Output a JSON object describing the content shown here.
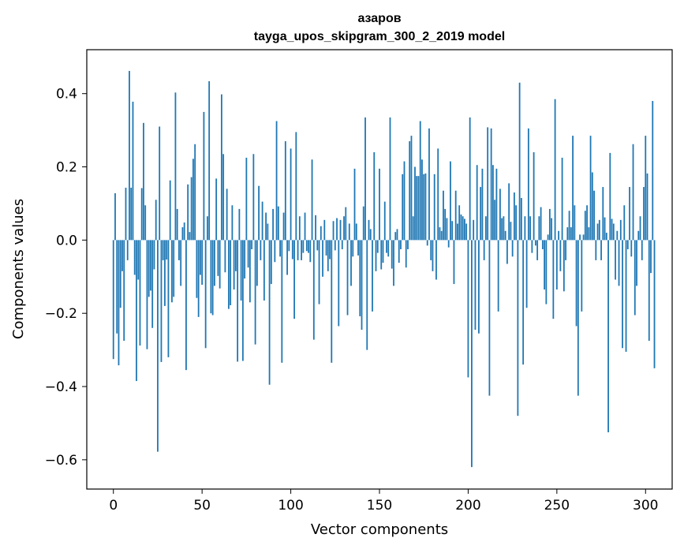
{
  "chart_data": {
    "type": "bar",
    "title_line1": "азаров",
    "title_line2": "tayga_upos_skipgram_300_2_2019 model",
    "xlabel": "Vector components",
    "ylabel": "Components values",
    "xlim": [
      -15,
      315
    ],
    "ylim": [
      -0.68,
      0.52
    ],
    "xticks": [
      0,
      50,
      100,
      150,
      200,
      250,
      300
    ],
    "xtick_labels": [
      "0",
      "50",
      "100",
      "150",
      "200",
      "250",
      "300"
    ],
    "yticks": [
      -0.6,
      -0.4,
      -0.2,
      0.0,
      0.2,
      0.4
    ],
    "ytick_labels": [
      "−0.6",
      "−0.4",
      "−0.2",
      "0.0",
      "0.2",
      "0.4"
    ],
    "bar_color": "#1f77b4",
    "grid": false,
    "legend": "none",
    "values": [
      -0.325,
      0.128,
      -0.255,
      -0.342,
      -0.185,
      -0.085,
      -0.275,
      0.143,
      -0.055,
      0.462,
      0.143,
      0.378,
      -0.095,
      -0.385,
      -0.108,
      -0.288,
      0.142,
      0.32,
      0.095,
      -0.298,
      -0.155,
      -0.138,
      -0.24,
      -0.08,
      0.11,
      -0.578,
      0.31,
      -0.333,
      -0.055,
      -0.18,
      -0.053,
      -0.32,
      0.163,
      -0.17,
      -0.155,
      0.403,
      0.085,
      -0.055,
      -0.125,
      0.035,
      0.048,
      -0.355,
      0.152,
      0.022,
      0.172,
      0.222,
      0.262,
      -0.158,
      -0.21,
      -0.095,
      -0.122,
      0.35,
      -0.295,
      0.065,
      0.434,
      -0.2,
      -0.205,
      -0.125,
      0.168,
      -0.098,
      -0.132,
      0.398,
      0.235,
      -0.088,
      0.14,
      -0.188,
      -0.178,
      0.095,
      -0.135,
      -0.085,
      -0.332,
      0.085,
      -0.165,
      -0.33,
      -0.105,
      0.225,
      -0.075,
      -0.17,
      -0.025,
      0.235,
      -0.285,
      -0.125,
      0.148,
      -0.055,
      0.105,
      -0.165,
      0.075,
      0.045,
      -0.395,
      -0.12,
      0.085,
      -0.06,
      0.325,
      0.092,
      -0.045,
      -0.335,
      0.075,
      0.27,
      -0.095,
      -0.03,
      0.25,
      -0.052,
      -0.215,
      0.295,
      -0.055,
      0.065,
      -0.055,
      -0.035,
      0.075,
      -0.03,
      -0.035,
      -0.06,
      0.22,
      -0.272,
      0.068,
      -0.028,
      -0.175,
      0.038,
      -0.1,
      0.055,
      -0.042,
      -0.085,
      -0.052,
      -0.335,
      0.052,
      -0.028,
      0.06,
      -0.235,
      0.055,
      -0.025,
      0.065,
      0.09,
      -0.205,
      0.045,
      -0.125,
      -0.045,
      0.195,
      0.045,
      -0.042,
      -0.208,
      -0.245,
      0.092,
      0.335,
      -0.3,
      0.055,
      0.03,
      -0.195,
      0.24,
      -0.085,
      -0.035,
      0.195,
      -0.08,
      -0.062,
      0.105,
      -0.035,
      -0.045,
      0.335,
      -0.078,
      -0.125,
      0.022,
      0.03,
      -0.062,
      -0.025,
      0.18,
      0.215,
      -0.075,
      -0.025,
      0.27,
      0.285,
      0.065,
      0.2,
      0.175,
      0.175,
      0.325,
      0.22,
      0.18,
      0.182,
      -0.015,
      0.305,
      -0.055,
      -0.085,
      0.18,
      -0.108,
      0.25,
      0.035,
      0.025,
      0.135,
      0.085,
      0.06,
      -0.02,
      0.215,
      0.052,
      -0.12,
      0.135,
      0.045,
      0.095,
      0.07,
      0.065,
      0.058,
      0.045,
      -0.375,
      0.335,
      -0.62,
      0.055,
      -0.245,
      0.205,
      -0.255,
      0.145,
      0.195,
      -0.055,
      0.065,
      0.308,
      -0.425,
      0.305,
      0.205,
      0.11,
      0.195,
      -0.195,
      0.14,
      0.06,
      0.065,
      0.025,
      -0.065,
      0.155,
      0.05,
      -0.045,
      0.13,
      0.095,
      -0.48,
      0.43,
      0.115,
      -0.34,
      0.065,
      -0.185,
      0.305,
      0.065,
      -0.035,
      0.24,
      -0.015,
      -0.055,
      0.065,
      0.09,
      -0.025,
      -0.135,
      -0.175,
      0.015,
      0.085,
      0.06,
      -0.215,
      0.385,
      -0.135,
      0.025,
      -0.085,
      0.225,
      -0.14,
      -0.055,
      0.035,
      0.08,
      0.035,
      0.285,
      0.095,
      -0.235,
      -0.425,
      0.015,
      -0.195,
      0.015,
      0.08,
      0.095,
      0.035,
      0.285,
      0.185,
      0.135,
      -0.055,
      0.045,
      0.055,
      -0.055,
      0.145,
      0.062,
      0.02,
      -0.525,
      0.238,
      0.058,
      0.045,
      -0.108,
      0.025,
      -0.125,
      0.055,
      -0.295,
      0.095,
      -0.305,
      -0.025,
      0.145,
      -0.045,
      0.262,
      -0.205,
      -0.125,
      0.025,
      0.065,
      -0.055,
      0.145,
      0.285,
      0.182,
      -0.275,
      -0.09,
      0.38,
      -0.35
    ]
  }
}
